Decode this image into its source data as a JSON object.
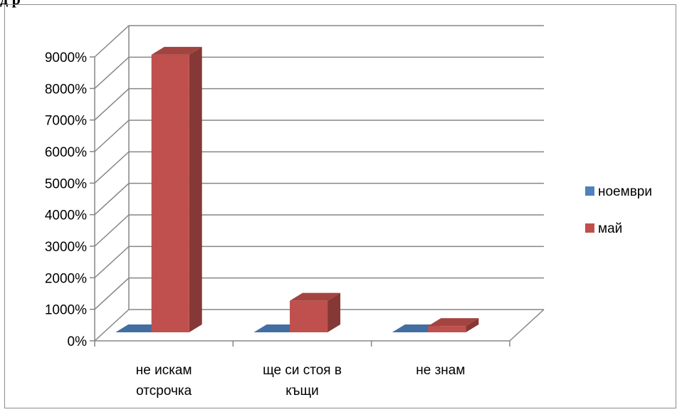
{
  "page": {
    "header_fragment": "д  р"
  },
  "colors": {
    "noemvri": "#4f81bd",
    "mai": "#c0504d",
    "gridline": "#868686",
    "frame": "#8c8c8c"
  },
  "chart_data": {
    "type": "bar",
    "title": "",
    "xlabel": "",
    "ylabel": "",
    "three_d": true,
    "grid": true,
    "legend_position": "right",
    "ylim": [
      0,
      9000
    ],
    "y_unit": "%",
    "y_ticks": [
      "0%",
      "1000%",
      "2000%",
      "3000%",
      "4000%",
      "5000%",
      "6000%",
      "7000%",
      "8000%",
      "9000%"
    ],
    "categories": [
      [
        "не искам",
        "отсрочка"
      ],
      [
        "ще си стоя в",
        "къщи"
      ],
      [
        "не знам"
      ]
    ],
    "series": [
      {
        "name": "ноември",
        "color": "#4f81bd",
        "values": [
          0,
          0,
          0
        ]
      },
      {
        "name": "май",
        "color": "#c0504d",
        "values": [
          8800,
          1000,
          200
        ]
      }
    ]
  }
}
